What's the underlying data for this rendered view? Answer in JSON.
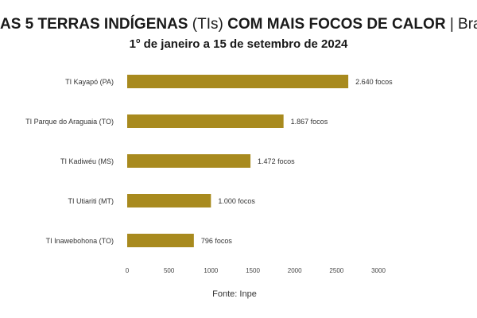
{
  "header": {
    "title_bold_1": "AS 5 TERRAS INDÍGENAS",
    "title_light_1": "(TIs)",
    "title_bold_2": "COM MAIS FOCOS DE CALOR",
    "title_light_2": "| Brasil",
    "subtitle_prefix": "1",
    "subtitle_ordinal": "o",
    "subtitle_rest": " de janeiro a 15 de setembro de 2024"
  },
  "source": "Fonte: Inpe",
  "colors": {
    "bar": "#a88a1e"
  },
  "chart_data": {
    "type": "bar",
    "orientation": "horizontal",
    "categories": [
      "TI Kayapó (PA)",
      "TI Parque do Araguaia (TO)",
      "TI Kadiwéu (MS)",
      "TI Utiariti (MT)",
      "TI Inawebohona (TO)"
    ],
    "values": [
      2640,
      1867,
      1472,
      1000,
      796
    ],
    "data_labels": [
      "2.640 focos",
      "1.867 focos",
      "1.472 focos",
      "1.000 focos",
      "796  focos"
    ],
    "xticks": [
      0,
      500,
      1000,
      1500,
      2000,
      2500,
      3000
    ],
    "xlim": [
      0,
      3000
    ],
    "grid": false
  }
}
